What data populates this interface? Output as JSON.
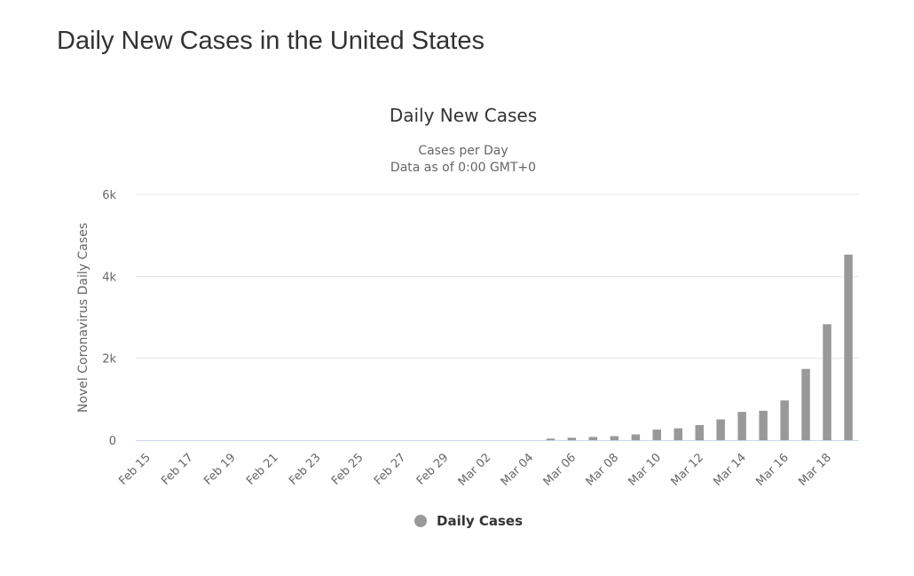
{
  "page": {
    "title": "Daily New Cases in the United States"
  },
  "colors": {
    "bar": "#999999",
    "grid": "#e6e6e6",
    "axis_line": "#ccd6eb",
    "title_text": "#333333",
    "label_text": "#666666"
  },
  "chart_data": {
    "type": "bar",
    "title": "Daily New Cases",
    "subtitle_lines": [
      "Cases per Day",
      "Data as of 0:00 GMT+0"
    ],
    "xlabel": "",
    "ylabel": "Novel Coronavirus Daily Cases",
    "ylim": [
      0,
      6000
    ],
    "yticks": [
      0,
      2000,
      4000,
      6000
    ],
    "ytick_labels": [
      "0",
      "2k",
      "4k",
      "6k"
    ],
    "grid": true,
    "legend_position": "bottom-center",
    "categories": [
      "Feb 15",
      "Feb 16",
      "Feb 17",
      "Feb 18",
      "Feb 19",
      "Feb 20",
      "Feb 21",
      "Feb 22",
      "Feb 23",
      "Feb 24",
      "Feb 25",
      "Feb 26",
      "Feb 27",
      "Feb 28",
      "Feb 29",
      "Mar 01",
      "Mar 02",
      "Mar 03",
      "Mar 04",
      "Mar 05",
      "Mar 06",
      "Mar 07",
      "Mar 08",
      "Mar 09",
      "Mar 10",
      "Mar 11",
      "Mar 12",
      "Mar 13",
      "Mar 14",
      "Mar 15",
      "Mar 16",
      "Mar 17",
      "Mar 18",
      "Mar 19"
    ],
    "xtick_labels": [
      "Feb 15",
      "Feb 17",
      "Feb 19",
      "Feb 21",
      "Feb 23",
      "Feb 25",
      "Feb 27",
      "Feb 29",
      "Mar 02",
      "Mar 04",
      "Mar 06",
      "Mar 08",
      "Mar 10",
      "Mar 12",
      "Mar 14",
      "Mar 16",
      "Mar 18"
    ],
    "series": [
      {
        "name": "Daily Cases",
        "values": [
          0,
          0,
          0,
          0,
          0,
          0,
          0,
          0,
          0,
          0,
          0,
          0,
          0,
          0,
          0,
          0,
          0,
          0,
          0,
          40,
          60,
          80,
          100,
          140,
          260,
          290,
          370,
          510,
          690,
          720,
          970,
          1740,
          2830,
          4530
        ]
      }
    ]
  }
}
